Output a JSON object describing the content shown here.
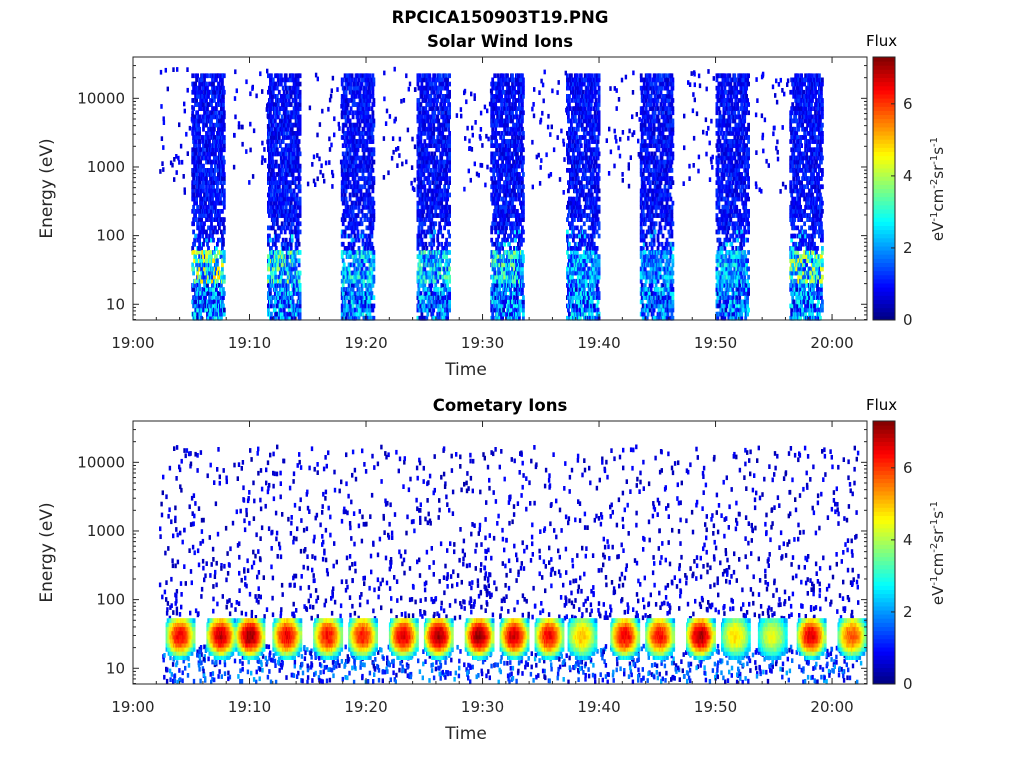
{
  "figure": {
    "title": "RPCICA150903T19.PNG"
  },
  "colorbar": {
    "title": "Flux",
    "colormap": "jet",
    "range": [
      0,
      7.3
    ],
    "ticks": [
      0,
      2,
      4,
      6
    ],
    "tick_labels": [
      "0",
      "2",
      "4",
      "6"
    ]
  },
  "chart_data": [
    {
      "type": "heatmap",
      "title": "Solar Wind Ions",
      "xlabel": "Time",
      "ylabel": "Energy (eV)",
      "yscale": "log",
      "xlim": [
        "19:00",
        "20:03"
      ],
      "ylim": [
        5.9,
        40000
      ],
      "x_ticks": [
        "19:00",
        "19:10",
        "19:20",
        "19:30",
        "19:40",
        "19:50",
        "20:00"
      ],
      "y_ticks": [
        10,
        100,
        1000,
        10000
      ],
      "y_tick_labels": [
        "10",
        "100",
        "1000",
        "10000"
      ],
      "colorbar_label": "Flux",
      "clim": [
        0,
        7.3
      ],
      "sweep_start_times": [
        "19:05:00",
        "19:11:30",
        "19:17:50",
        "19:24:20",
        "19:30:40",
        "19:37:10",
        "19:43:30",
        "19:50:00",
        "19:56:20"
      ],
      "sweep_duration_min": 2.8,
      "peak_energy_eV": 35,
      "peak_flux": [
        5.0,
        4.3,
        3.5,
        3.6,
        4.0,
        3.0,
        2.7,
        3.2,
        4.8
      ],
      "background_flux": 0.5
    },
    {
      "type": "heatmap",
      "title": "Cometary Ions",
      "xlabel": "Time",
      "ylabel": "Energy (eV)",
      "yscale": "log",
      "xlim": [
        "19:00",
        "20:03"
      ],
      "ylim": [
        5.9,
        40000
      ],
      "x_ticks": [
        "19:00",
        "19:10",
        "19:20",
        "19:30",
        "19:40",
        "19:50",
        "20:00"
      ],
      "y_ticks": [
        10,
        100,
        1000,
        10000
      ],
      "y_tick_labels": [
        "10",
        "100",
        "1000",
        "10000"
      ],
      "colorbar_label": "Flux",
      "clim": [
        0,
        7.3
      ],
      "blob_centers": [
        "19:04:00",
        "19:07:30",
        "19:10:00",
        "19:13:10",
        "19:16:40",
        "19:19:40",
        "19:23:10",
        "19:26:10",
        "19:29:40",
        "19:32:40",
        "19:35:40",
        "19:38:30",
        "19:42:10",
        "19:45:10",
        "19:48:40",
        "19:51:40",
        "19:54:50",
        "19:58:10",
        "20:01:40"
      ],
      "blob_peak_flux": [
        6.2,
        6.6,
        6.9,
        6.3,
        6.1,
        6.0,
        6.4,
        6.8,
        6.9,
        6.5,
        6.2,
        4.8,
        6.3,
        6.1,
        6.8,
        4.6,
        4.2,
        6.4,
        5.6
      ],
      "blob_energy_range_eV": [
        18,
        40
      ],
      "background_flux": 0.4
    }
  ]
}
